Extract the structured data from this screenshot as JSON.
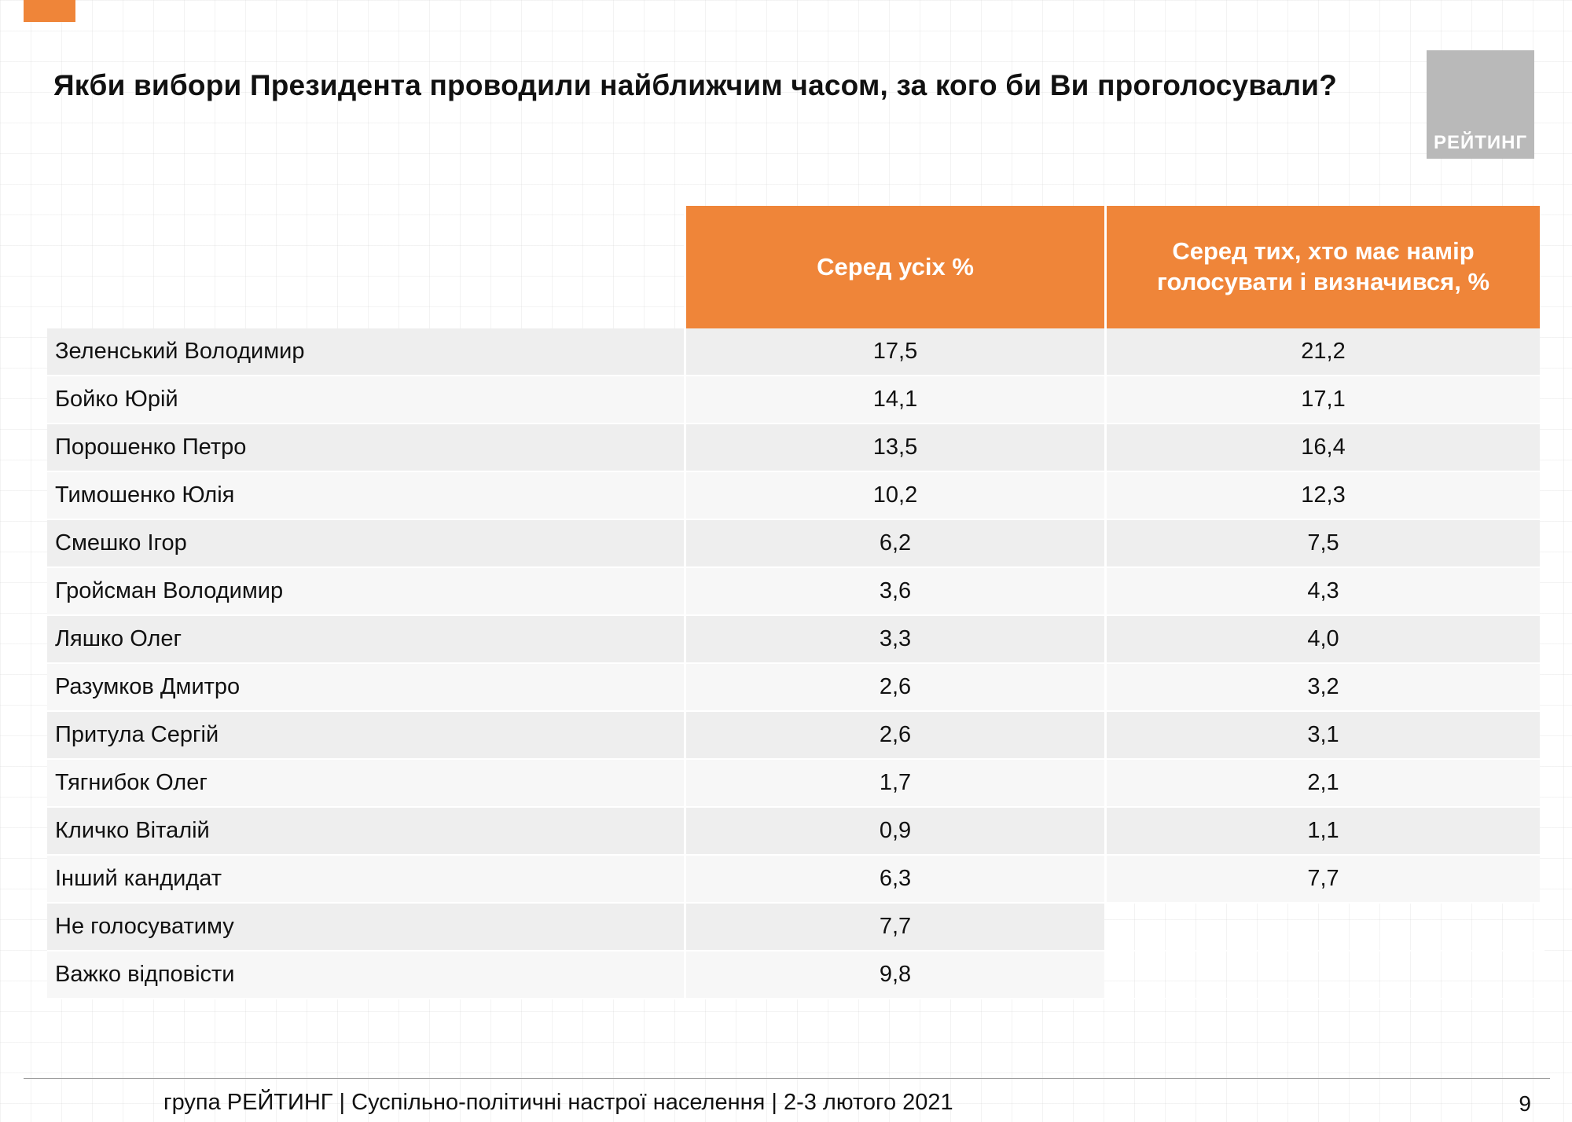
{
  "header": {
    "title": "Якби вибори Президента проводили найближчим часом, за кого би Ви проголосували?",
    "logo_label": "РЕЙТИНГ"
  },
  "colors": {
    "accent_orange": "#EF8539",
    "logo_gray": "#b9b9b9",
    "row_stripe_dark": "#eeeeee",
    "row_stripe_light": "#f7f7f7"
  },
  "chart_data": {
    "type": "table",
    "title": "Якби вибори Президента проводили найближчим часом, за кого би Ви проголосували?",
    "columns": [
      "",
      "Серед усіх %",
      "Серед тих, хто має намір голосувати і визначився, %"
    ],
    "rows": [
      {
        "name": "Зеленський Володимир",
        "all": "17,5",
        "decided": "21,2"
      },
      {
        "name": "Бойко Юрій",
        "all": "14,1",
        "decided": "17,1"
      },
      {
        "name": "Порошенко Петро",
        "all": "13,5",
        "decided": "16,4"
      },
      {
        "name": "Тимошенко Юлія",
        "all": "10,2",
        "decided": "12,3"
      },
      {
        "name": "Смешко Ігор",
        "all": "6,2",
        "decided": "7,5"
      },
      {
        "name": "Гройсман Володимир",
        "all": "3,6",
        "decided": "4,3"
      },
      {
        "name": "Ляшко Олег",
        "all": "3,3",
        "decided": "4,0"
      },
      {
        "name": "Разумков Дмитро",
        "all": "2,6",
        "decided": "3,2"
      },
      {
        "name": "Притула Сергій",
        "all": "2,6",
        "decided": "3,1"
      },
      {
        "name": "Тягнибок Олег",
        "all": "1,7",
        "decided": "2,1"
      },
      {
        "name": "Кличко Віталій",
        "all": "0,9",
        "decided": "1,1"
      },
      {
        "name": "Інший кандидат",
        "all": "6,3",
        "decided": "7,7"
      },
      {
        "name": "Не голосуватиму",
        "all": "7,7",
        "decided": null
      },
      {
        "name": "Важко відповісти",
        "all": "9,8",
        "decided": null
      }
    ]
  },
  "footer": {
    "text": "група РЕЙТИНГ | Суспільно-політичні настрої населення  | 2-3 лютого 2021",
    "page_number": "9"
  }
}
